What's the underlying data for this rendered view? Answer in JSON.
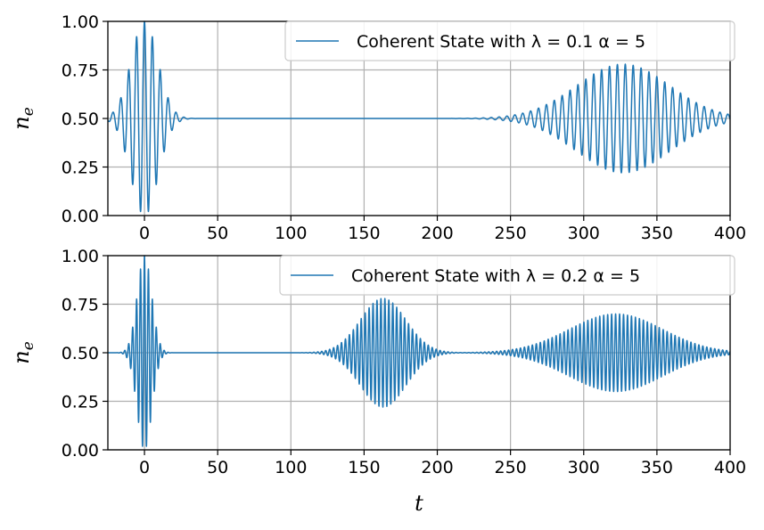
{
  "chart_data": [
    {
      "type": "line",
      "title": "",
      "xlabel": "",
      "ylabel": "n_e",
      "ylabel_main": "n",
      "ylabel_sub": "e",
      "xlim": [
        -25,
        400
      ],
      "ylim": [
        0,
        1
      ],
      "xticks": [
        0,
        50,
        100,
        150,
        200,
        250,
        300,
        350,
        400
      ],
      "xtick_labels": [
        "0",
        "50",
        "100",
        "150",
        "200",
        "250",
        "300",
        "350",
        "400"
      ],
      "yticks": [
        0,
        0.25,
        0.5,
        0.75,
        1
      ],
      "ytick_labels": [
        "0.00",
        "0.25",
        "0.50",
        "0.75",
        "1.00"
      ],
      "grid": true,
      "legend_position": "top-right",
      "color": "#1f77b4",
      "series": [
        {
          "name": "Coherent State with λ = 0.1 α = 5",
          "collapse_center": 0,
          "collapse_width": 13,
          "revival_center": 327,
          "revival_width": 45,
          "revival_amplitude": 0.28,
          "oscillation_period": 5.4,
          "points": [
            [
              -25,
              0.47
            ],
            [
              -22,
              0.56
            ],
            [
              -18,
              0.4
            ],
            [
              -15,
              0.67
            ],
            [
              -8,
              0.83
            ],
            [
              -4,
              0.1
            ],
            [
              -2,
              0.97
            ],
            [
              0,
              0.0
            ],
            [
              2,
              0.98
            ],
            [
              5,
              0.08
            ],
            [
              8,
              0.84
            ],
            [
              14,
              0.3
            ],
            [
              20,
              0.56
            ],
            [
              35,
              0.5
            ],
            [
              220,
              0.5
            ],
            [
              250,
              0.52
            ],
            [
              300,
              0.66
            ],
            [
              327,
              0.78
            ],
            [
              350,
              0.72
            ],
            [
              400,
              0.49
            ]
          ]
        }
      ]
    },
    {
      "type": "line",
      "title": "",
      "xlabel": "t",
      "ylabel": "n_e",
      "ylabel_main": "n",
      "ylabel_sub": "e",
      "xlim": [
        -25,
        400
      ],
      "ylim": [
        0,
        1
      ],
      "xticks": [
        0,
        50,
        100,
        150,
        200,
        250,
        300,
        350,
        400
      ],
      "xtick_labels": [
        "0",
        "50",
        "100",
        "150",
        "200",
        "250",
        "300",
        "350",
        "400"
      ],
      "yticks": [
        0,
        0.25,
        0.5,
        0.75,
        1
      ],
      "ytick_labels": [
        "0.00",
        "0.25",
        "0.50",
        "0.75",
        "1.00"
      ],
      "grid": true,
      "legend_position": "top-right",
      "color": "#1f77b4",
      "series": [
        {
          "name": "Coherent State  with λ = 0.2 α = 5",
          "collapse_center": 0,
          "collapse_width": 7,
          "revival_center": 163,
          "revival_width": 22,
          "revival_amplitude": 0.28,
          "revival2_center": 322,
          "revival2_width": 45,
          "revival2_amplitude": 0.2,
          "oscillation_period": 2.7,
          "points": [
            [
              -25,
              0.5
            ],
            [
              -10,
              0.58
            ],
            [
              -3,
              0.84
            ],
            [
              -1,
              0.97
            ],
            [
              0,
              0.0
            ],
            [
              1,
              0.97
            ],
            [
              3,
              0.08
            ],
            [
              8,
              0.65
            ],
            [
              15,
              0.5
            ],
            [
              110,
              0.5
            ],
            [
              163,
              0.77
            ],
            [
              163,
              0.22
            ],
            [
              200,
              0.5
            ],
            [
              250,
              0.5
            ],
            [
              322,
              0.7
            ],
            [
              322,
              0.3
            ],
            [
              400,
              0.5
            ]
          ]
        }
      ]
    }
  ]
}
